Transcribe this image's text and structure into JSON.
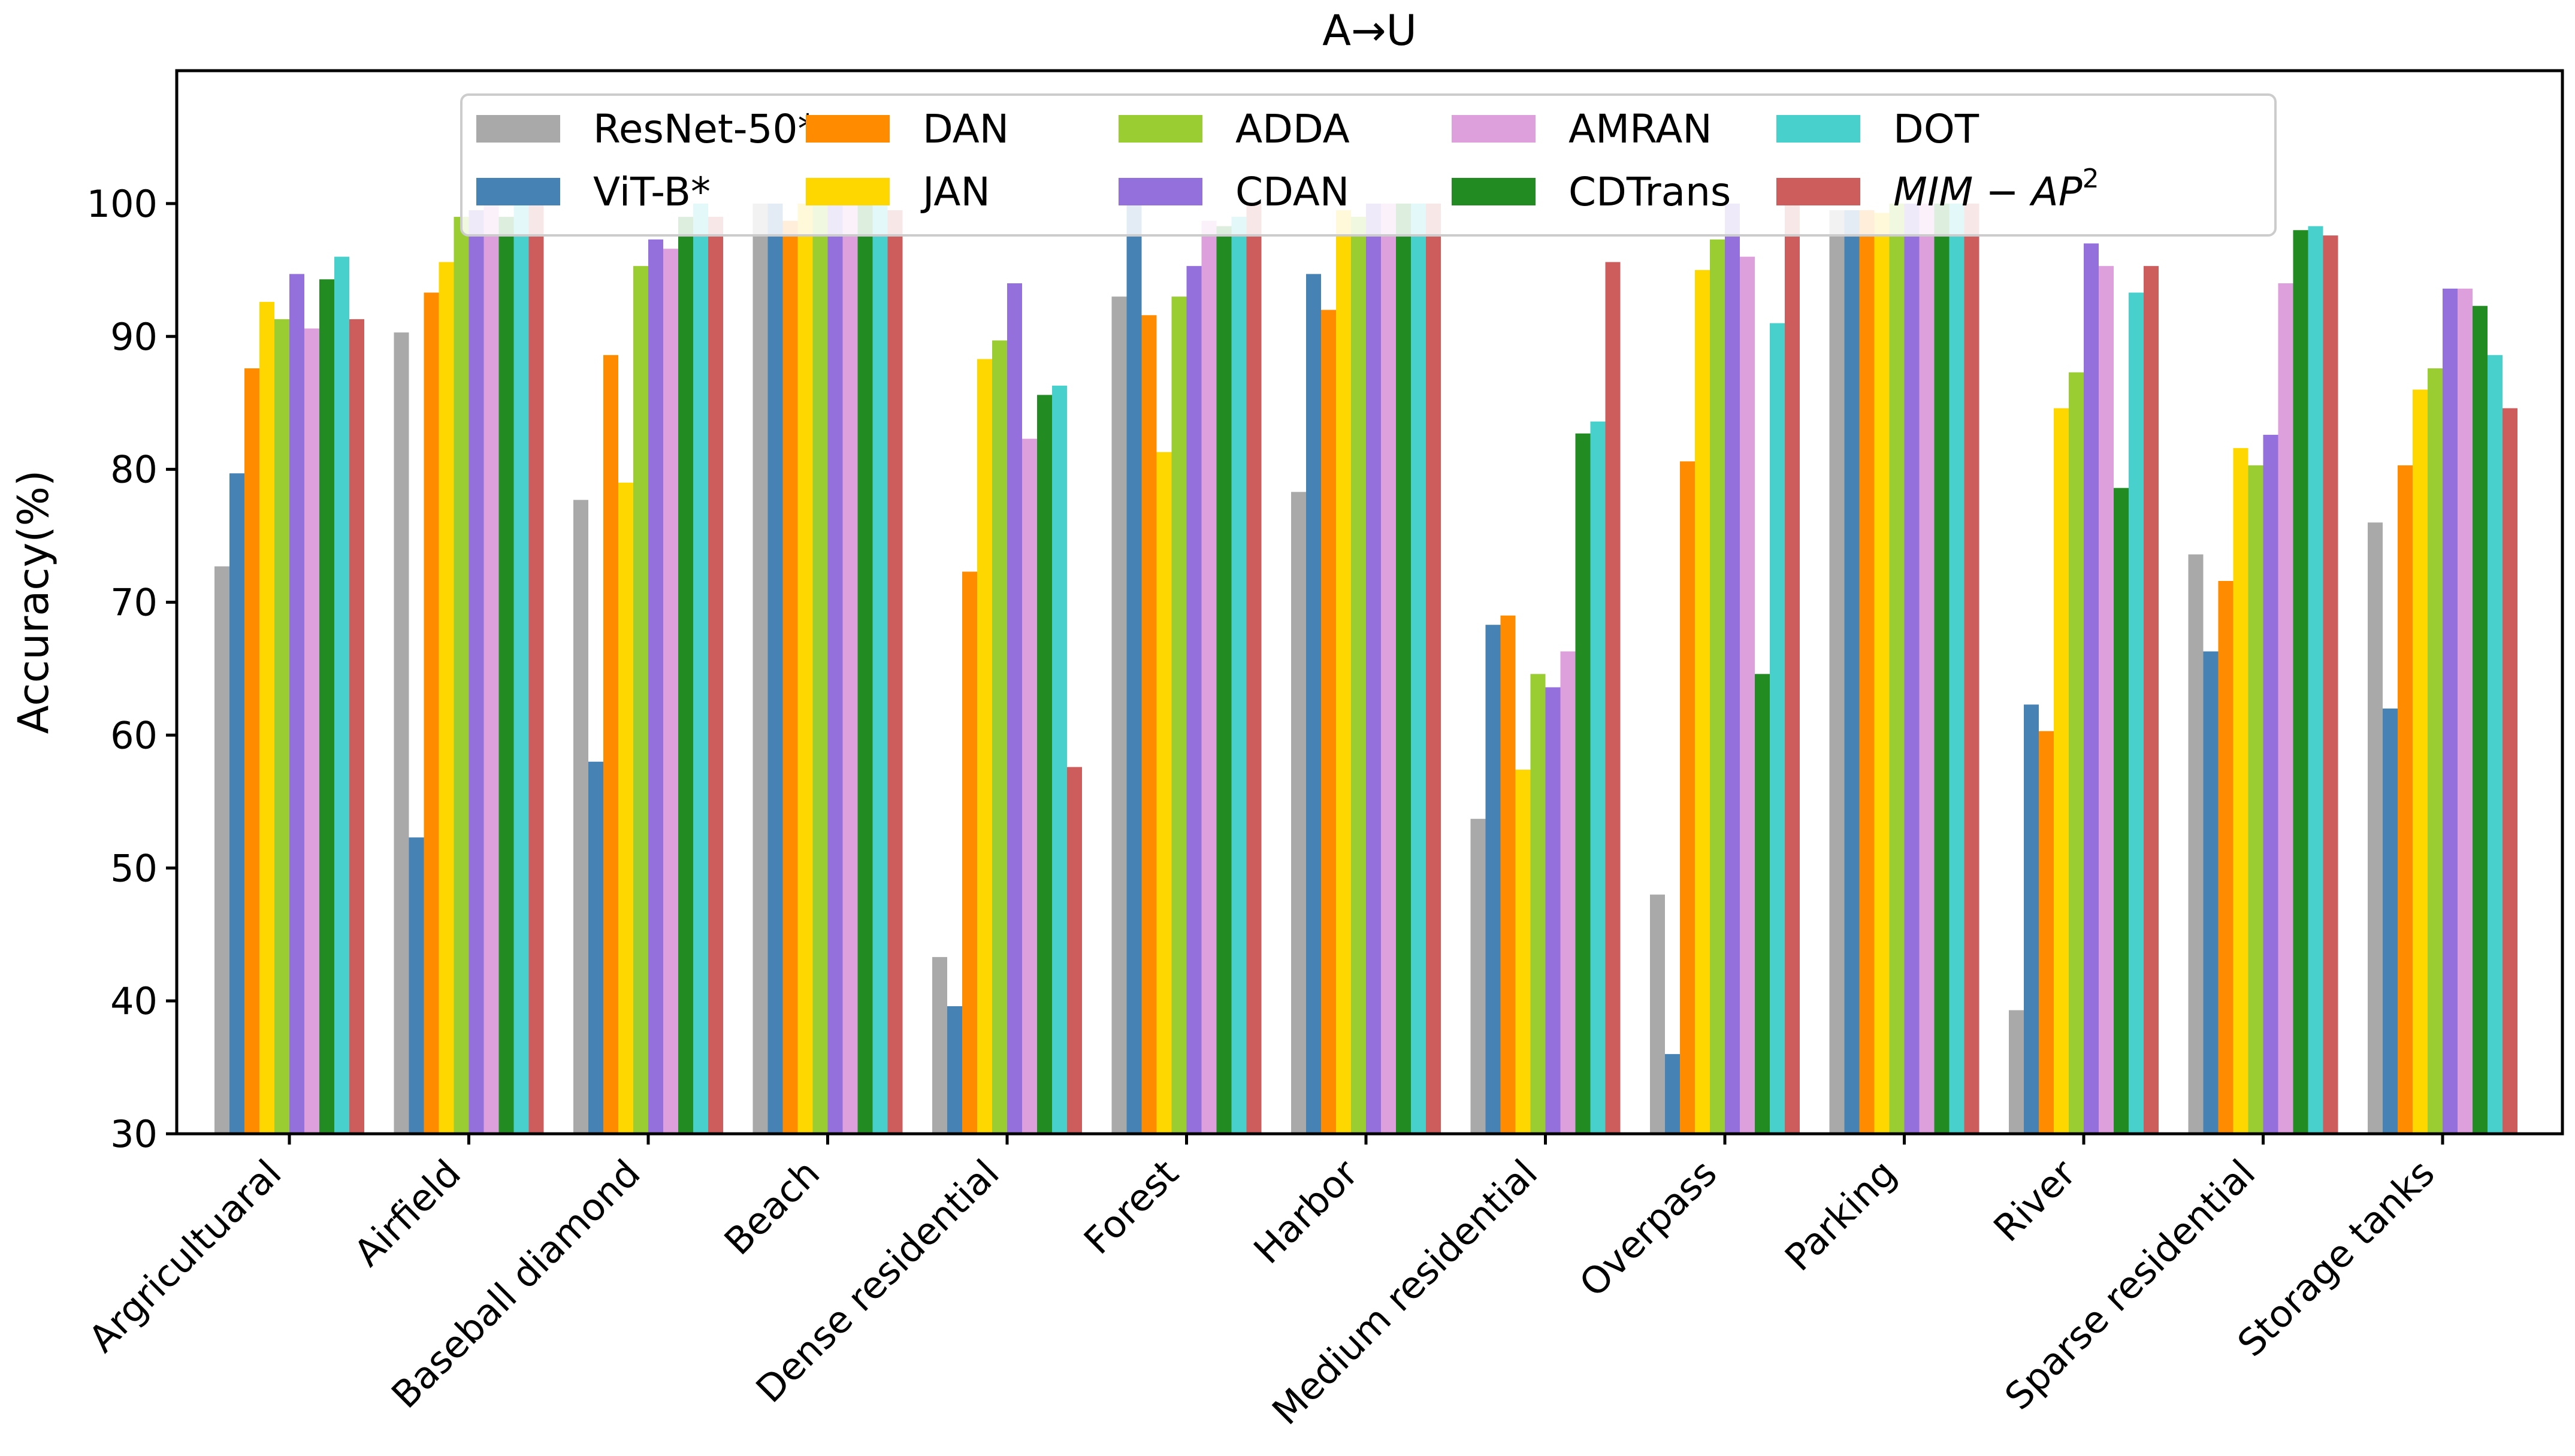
{
  "chart_data": {
    "type": "bar",
    "title": "A→U",
    "xlabel": "",
    "ylabel": "Accuracy(%)",
    "ylim": [
      30,
      110
    ],
    "yticks": [
      30,
      40,
      50,
      60,
      70,
      80,
      90,
      100
    ],
    "grid": false,
    "legend_position": "top-center",
    "categories": [
      "Argricultuaral",
      "Airfield",
      "Baseball diamond",
      "Beach",
      "Dense residential",
      "Forest",
      "Harbor",
      "Medium residential",
      "Overpass",
      "Parking",
      "River",
      "Sparse residential",
      "Storage tanks"
    ],
    "series": [
      {
        "name": "ResNet-50*",
        "color": "#a9a9a9",
        "values": [
          72.7,
          90.3,
          77.7,
          100,
          43.3,
          93.0,
          78.3,
          53.7,
          48.0,
          99.5,
          39.3,
          73.6,
          76.0
        ]
      },
      {
        "name": "ViT-B*",
        "color": "#4682b4",
        "values": [
          79.7,
          52.3,
          58.0,
          100,
          39.6,
          100,
          94.7,
          68.3,
          36.0,
          99.5,
          62.3,
          66.3,
          62.0
        ]
      },
      {
        "name": "DAN",
        "color": "#ff8c00",
        "values": [
          87.6,
          93.3,
          88.6,
          98.7,
          72.3,
          91.6,
          92.0,
          69.0,
          80.6,
          99.5,
          60.3,
          71.6,
          80.3
        ]
      },
      {
        "name": "JAN",
        "color": "#ffd700",
        "values": [
          92.6,
          95.6,
          79.0,
          100,
          88.3,
          81.3,
          99.5,
          57.4,
          95.0,
          99.3,
          84.6,
          81.6,
          86.0
        ]
      },
      {
        "name": "ADDA",
        "color": "#9acd32",
        "values": [
          91.3,
          99.0,
          95.3,
          100,
          89.7,
          93.0,
          99.0,
          64.6,
          97.3,
          100,
          87.3,
          80.3,
          87.6
        ]
      },
      {
        "name": "CDAN",
        "color": "#9370db",
        "values": [
          94.7,
          99.5,
          97.3,
          100,
          94.0,
          95.3,
          100,
          63.6,
          100,
          100,
          97.0,
          82.6,
          93.6
        ]
      },
      {
        "name": "AMRAN",
        "color": "#dda0dd",
        "values": [
          90.6,
          100,
          96.6,
          100,
          82.3,
          98.7,
          100,
          66.3,
          96.0,
          100,
          95.3,
          94.0,
          93.6
        ]
      },
      {
        "name": "CDTrans",
        "color": "#228b22",
        "values": [
          94.3,
          99.0,
          99.0,
          100,
          85.6,
          98.3,
          100,
          82.7,
          64.6,
          100,
          78.6,
          98.0,
          92.3
        ]
      },
      {
        "name": "DOT",
        "color": "#48d1cc",
        "values": [
          96.0,
          100,
          100,
          100,
          86.3,
          99.0,
          100,
          83.6,
          91.0,
          100,
          93.3,
          98.3,
          88.6
        ]
      },
      {
        "name": "MIM − AP",
        "superscript": "2",
        "italic": true,
        "color": "#cd5c5c",
        "values": [
          91.3,
          100,
          99.0,
          99.5,
          57.6,
          100,
          100,
          95.6,
          100,
          100,
          95.3,
          97.6,
          84.6
        ]
      }
    ]
  }
}
